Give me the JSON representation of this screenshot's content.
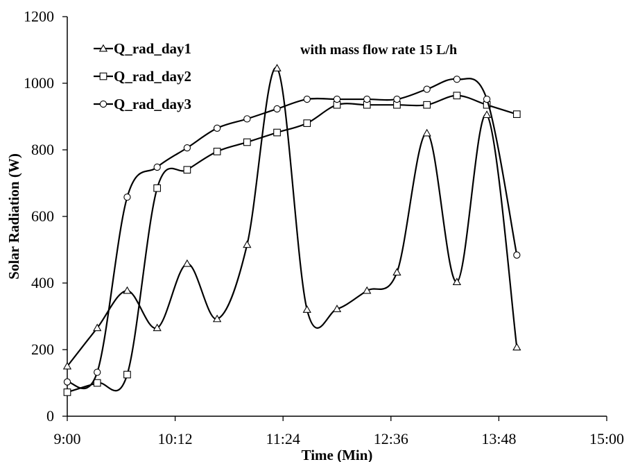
{
  "chart_data": {
    "type": "line",
    "title": "",
    "annotation": "with mass flow rate 15 L/h",
    "xlabel": "Time (Min)",
    "ylabel": "Solar Radiation (W)",
    "x_tick_labels": [
      "9:00",
      "10:12",
      "11:24",
      "12:36",
      "13:48",
      "15:00"
    ],
    "x_range": [
      "9:00",
      "15:00"
    ],
    "y_ticks": [
      0,
      200,
      400,
      600,
      800,
      1000,
      1200
    ],
    "ylim": [
      0,
      1200
    ],
    "grid": false,
    "legend_position": "top-left",
    "x": [
      "9:00",
      "9:20",
      "9:40",
      "10:00",
      "10:20",
      "10:40",
      "11:00",
      "11:20",
      "11:40",
      "12:00",
      "12:20",
      "12:40",
      "13:00",
      "13:20",
      "13:40",
      "14:00"
    ],
    "series": [
      {
        "name": "Q_rad_day1",
        "marker": "triangle",
        "values": [
          150,
          265,
          377,
          265,
          458,
          292,
          515,
          1045,
          320,
          322,
          377,
          432,
          850,
          403,
          905,
          207
        ]
      },
      {
        "name": "Q_rad_day2",
        "marker": "square",
        "values": [
          72,
          100,
          125,
          685,
          740,
          795,
          823,
          852,
          880,
          935,
          935,
          935,
          935,
          963,
          935,
          907
        ]
      },
      {
        "name": "Q_rad_day3",
        "marker": "circle",
        "values": [
          103,
          132,
          658,
          748,
          806,
          865,
          893,
          923,
          952,
          952,
          952,
          952,
          982,
          1012,
          952,
          484
        ]
      }
    ]
  }
}
